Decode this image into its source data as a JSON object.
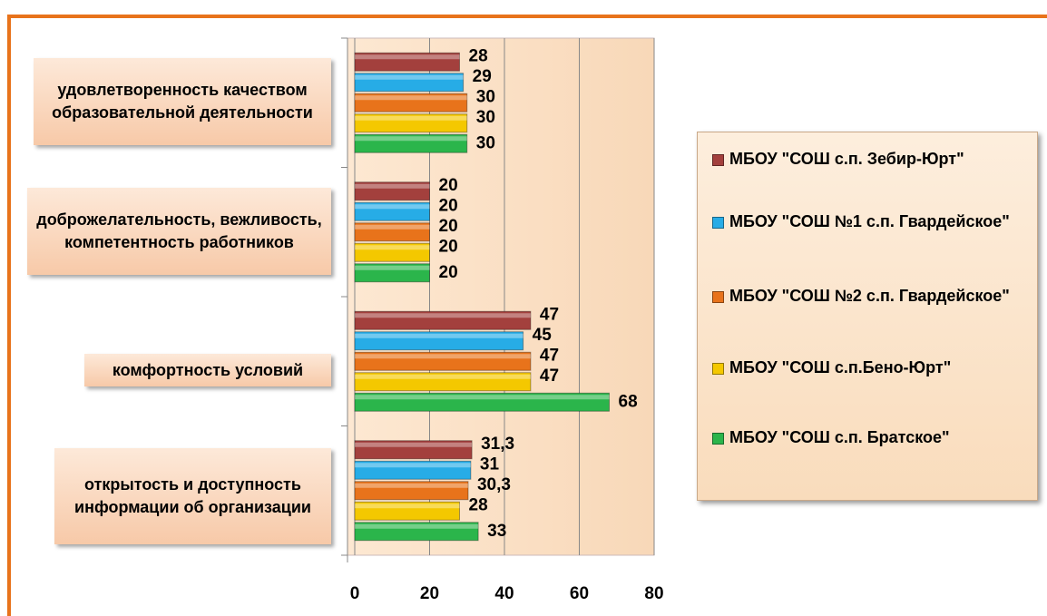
{
  "chart_data": {
    "type": "bar",
    "orientation": "horizontal",
    "categories": [
      "удовлетворенность качеством образовательной деятельности",
      "доброжелательность, вежливость, компетентность работников",
      "комфортность условий",
      "открытость и доступность информации об организации"
    ],
    "series": [
      {
        "name": "МБОУ \"СОШ с.п. Зебир-Юрт\"",
        "color": "#a3403d",
        "values": [
          28,
          20,
          47,
          31.3
        ],
        "value_labels": [
          "28",
          "20",
          "47",
          "31,3"
        ]
      },
      {
        "name": "МБОУ \"СОШ №1 с.п. Гвардейское\"",
        "color": "#27ace6",
        "values": [
          29,
          20,
          45,
          31
        ],
        "value_labels": [
          "29",
          "20",
          "45",
          "31"
        ]
      },
      {
        "name": "МБОУ \"СОШ №2 с.п. Гвардейское\"",
        "color": "#e8731b",
        "values": [
          30,
          20,
          47,
          30.3
        ],
        "value_labels": [
          "30",
          "20",
          "47",
          "30,3"
        ]
      },
      {
        "name": "МБОУ \"СОШ с.п.Бено-Юрт\"",
        "color": "#f4c800",
        "values": [
          30,
          20,
          47,
          28
        ],
        "value_labels": [
          "30",
          "20",
          "47",
          "28"
        ]
      },
      {
        "name": "МБОУ \"СОШ с.п. Братское\"",
        "color": "#2bb54b",
        "values": [
          30,
          20,
          68,
          33
        ],
        "value_labels": [
          "30",
          "20",
          "68",
          "33"
        ]
      }
    ],
    "xlim": [
      0,
      80
    ],
    "xticks": [
      0,
      20,
      40,
      60,
      80
    ],
    "grid": true,
    "legend": "right"
  }
}
